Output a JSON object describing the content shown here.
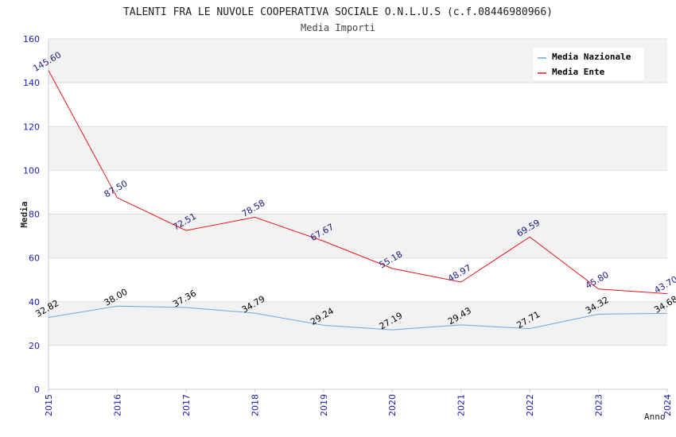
{
  "chart_data": {
    "type": "line",
    "title": "TALENTI FRA LE NUVOLE COOPERATIVA SOCIALE O.N.L.U.S (c.f.08446980966)",
    "subtitle": "Media Importi",
    "xlabel": "Anno",
    "ylabel": "Media",
    "ylim": [
      0,
      160
    ],
    "yticks": [
      "0",
      "20",
      "40",
      "60",
      "80",
      "100",
      "120",
      "140",
      "160"
    ],
    "categories": [
      "2015",
      "2016",
      "2017",
      "2018",
      "2019",
      "2020",
      "2021",
      "2022",
      "2023",
      "2024"
    ],
    "grid": true,
    "legend_position": "top-right",
    "series": [
      {
        "name": "Media Nazionale",
        "color": "#6fa8dc",
        "label_color": "#000000",
        "values": [
          32.82,
          38.0,
          37.36,
          34.79,
          29.24,
          27.19,
          29.43,
          27.71,
          34.32,
          34.68
        ],
        "labels": [
          "32.82",
          "38.00",
          "37.36",
          "34.79",
          "29.24",
          "27.19",
          "29.43",
          "27.71",
          "34.32",
          "34.68"
        ]
      },
      {
        "name": "Media Ente",
        "color": "#e8141b",
        "label_color": "#1a1a80",
        "values": [
          145.6,
          87.5,
          72.51,
          78.58,
          67.67,
          55.18,
          48.97,
          69.59,
          45.8,
          43.7
        ],
        "labels": [
          "145.60",
          "87.50",
          "72.51",
          "78.58",
          "67.67",
          "55.18",
          "48.97",
          "69.59",
          "45.80",
          "43.70"
        ]
      }
    ],
    "colors": {
      "axis_tick_label": "#1a1ab0",
      "band": "#f2f2f2",
      "gridline": "#dcdcdc",
      "axis": "#cccccc"
    }
  }
}
